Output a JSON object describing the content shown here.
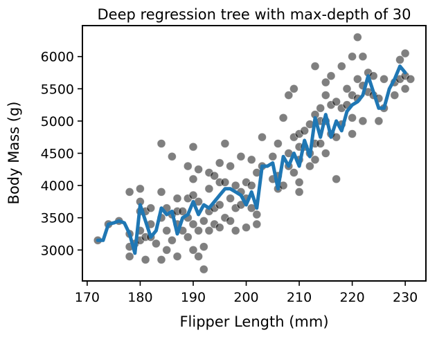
{
  "chart_data": {
    "type": "scatter",
    "title": "Deep regression tree with max-depth of 30",
    "xlabel": "Flipper Length (mm)",
    "ylabel": "Body Mass (g)",
    "xlim": [
      169.1,
      233.9
    ],
    "ylim": [
      2520,
      6480
    ],
    "xticks": [
      170,
      180,
      190,
      200,
      210,
      220,
      230
    ],
    "yticks": [
      3000,
      3500,
      4000,
      4500,
      5000,
      5500,
      6000
    ],
    "grid": false,
    "legend": "none",
    "series": [
      {
        "kind": "scatter",
        "color": "#000000",
        "opacity": 0.5,
        "points": [
          [
            172,
            3150
          ],
          [
            174,
            3400
          ],
          [
            176,
            3450
          ],
          [
            178,
            3900
          ],
          [
            178,
            3250
          ],
          [
            178,
            2900
          ],
          [
            178,
            3050
          ],
          [
            179,
            3100
          ],
          [
            180,
            3950
          ],
          [
            180,
            3750
          ],
          [
            180,
            3600
          ],
          [
            180,
            3150
          ],
          [
            180,
            3300
          ],
          [
            181,
            2850
          ],
          [
            181,
            3200
          ],
          [
            181,
            3600
          ],
          [
            182,
            3650
          ],
          [
            182,
            3200
          ],
          [
            182,
            3400
          ],
          [
            183,
            3100
          ],
          [
            184,
            3900
          ],
          [
            184,
            4650
          ],
          [
            184,
            2850
          ],
          [
            184,
            3500
          ],
          [
            185,
            3650
          ],
          [
            185,
            3300
          ],
          [
            185,
            3000
          ],
          [
            186,
            4450
          ],
          [
            186,
            3550
          ],
          [
            186,
            3150
          ],
          [
            187,
            3800
          ],
          [
            187,
            3400
          ],
          [
            187,
            2900
          ],
          [
            187,
            3600
          ],
          [
            188,
            3300
          ],
          [
            188,
            3600
          ],
          [
            189,
            4300
          ],
          [
            189,
            3500
          ],
          [
            189,
            3200
          ],
          [
            189,
            3800
          ],
          [
            190,
            4600
          ],
          [
            190,
            4100
          ],
          [
            190,
            3850
          ],
          [
            190,
            3400
          ],
          [
            190,
            3000
          ],
          [
            191,
            4250
          ],
          [
            191,
            3750
          ],
          [
            191,
            3300
          ],
          [
            191,
            2900
          ],
          [
            192,
            2700
          ],
          [
            192,
            3450
          ],
          [
            192,
            3050
          ],
          [
            193,
            3950
          ],
          [
            193,
            3600
          ],
          [
            193,
            3300
          ],
          [
            193,
            4200
          ],
          [
            194,
            4150
          ],
          [
            194,
            3650
          ],
          [
            194,
            3400
          ],
          [
            195,
            4350
          ],
          [
            195,
            4050
          ],
          [
            195,
            3700
          ],
          [
            195,
            3350
          ],
          [
            196,
            4650
          ],
          [
            196,
            4050
          ],
          [
            196,
            3500
          ],
          [
            197,
            4300
          ],
          [
            197,
            3800
          ],
          [
            197,
            3450
          ],
          [
            198,
            4000
          ],
          [
            198,
            3650
          ],
          [
            198,
            3300
          ],
          [
            199,
            4450
          ],
          [
            199,
            3900
          ],
          [
            199,
            3700
          ],
          [
            200,
            4050
          ],
          [
            200,
            3800
          ],
          [
            200,
            3350
          ],
          [
            201,
            4400
          ],
          [
            201,
            4000
          ],
          [
            201,
            3650
          ],
          [
            202,
            4200
          ],
          [
            202,
            3550
          ],
          [
            202,
            3400
          ],
          [
            203,
            4750
          ],
          [
            203,
            4300
          ],
          [
            205,
            4450
          ],
          [
            205,
            4100
          ],
          [
            206,
            4650
          ],
          [
            206,
            4150
          ],
          [
            206,
            3950
          ],
          [
            207,
            4000
          ],
          [
            207,
            5050
          ],
          [
            208,
            4300
          ],
          [
            208,
            4500
          ],
          [
            208,
            5400
          ],
          [
            209,
            4750
          ],
          [
            209,
            4200
          ],
          [
            209,
            5500
          ],
          [
            210,
            4800
          ],
          [
            210,
            4400
          ],
          [
            210,
            4050
          ],
          [
            210,
            3900
          ],
          [
            210,
            4600
          ],
          [
            211,
            4600
          ],
          [
            211,
            4850
          ],
          [
            212,
            4300
          ],
          [
            212,
            4500
          ],
          [
            212,
            4950
          ],
          [
            213,
            5850
          ],
          [
            213,
            5100
          ],
          [
            213,
            4650
          ],
          [
            213,
            4400
          ],
          [
            214,
            5200
          ],
          [
            214,
            5000
          ],
          [
            214,
            4650
          ],
          [
            215,
            5400
          ],
          [
            215,
            5000
          ],
          [
            215,
            4500
          ],
          [
            215,
            5600
          ],
          [
            216,
            5700
          ],
          [
            216,
            4800
          ],
          [
            216,
            5250
          ],
          [
            217,
            4750
          ],
          [
            217,
            4100
          ],
          [
            217,
            5300
          ],
          [
            218,
            5850
          ],
          [
            218,
            5200
          ],
          [
            218,
            4950
          ],
          [
            219,
            5500
          ],
          [
            219,
            5250
          ],
          [
            220,
            6000
          ],
          [
            220,
            5400
          ],
          [
            220,
            4800
          ],
          [
            220,
            5050
          ],
          [
            221,
            6300
          ],
          [
            221,
            5650
          ],
          [
            221,
            5350
          ],
          [
            222,
            6000
          ],
          [
            222,
            5550
          ],
          [
            222,
            5000
          ],
          [
            223,
            5750
          ],
          [
            223,
            5450
          ],
          [
            224,
            5700
          ],
          [
            224,
            5400
          ],
          [
            225,
            5000
          ],
          [
            225,
            5350
          ],
          [
            226,
            5650
          ],
          [
            226,
            5200
          ],
          [
            228,
            5600
          ],
          [
            228,
            5400
          ],
          [
            229,
            5950
          ],
          [
            229,
            5650
          ],
          [
            230,
            6050
          ],
          [
            230,
            5700
          ],
          [
            230,
            5500
          ],
          [
            231,
            5650
          ]
        ]
      },
      {
        "kind": "line",
        "color": "#1f77b4",
        "x": [
          172,
          173,
          174,
          175,
          176,
          177,
          178,
          179,
          180,
          181,
          182,
          183,
          184,
          185,
          186,
          187,
          188,
          189,
          190,
          191,
          192,
          193,
          194,
          195,
          196,
          197,
          198,
          199,
          200,
          201,
          202,
          203,
          204,
          205,
          206,
          207,
          208,
          209,
          210,
          211,
          212,
          213,
          214,
          215,
          216,
          217,
          218,
          219,
          220,
          221,
          222,
          223,
          224,
          225,
          226,
          227,
          228,
          229,
          230
        ],
        "y": [
          3150,
          3150,
          3400,
          3420,
          3450,
          3420,
          3250,
          2950,
          3700,
          3450,
          3200,
          3300,
          3650,
          3550,
          3600,
          3250,
          3500,
          3550,
          3750,
          3550,
          3700,
          3650,
          3750,
          3850,
          3950,
          3950,
          3900,
          3850,
          3700,
          3900,
          3650,
          4300,
          4300,
          4350,
          3950,
          4450,
          4300,
          4500,
          4300,
          4700,
          4450,
          5050,
          4750,
          5100,
          4750,
          5000,
          4850,
          5150,
          5250,
          5300,
          5400,
          5700,
          5450,
          5200,
          5200,
          5500,
          5650,
          5850,
          5750
        ]
      }
    ]
  }
}
